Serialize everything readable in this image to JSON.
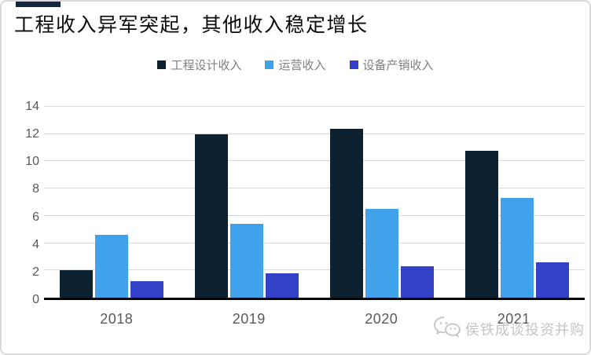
{
  "header": {
    "title": "工程收入异军突起，其他收入稳定增长"
  },
  "watermark": {
    "text": "侯铁成谈投资并购",
    "icon": "wechat-icon"
  },
  "colors": {
    "accent_bar": "#16263a",
    "axis_line": "#000000",
    "gridline": "#d9d9d9",
    "tick_label": "#595959",
    "legend_text": "#7f7f7f",
    "card_border": "#d9d9d9"
  },
  "chart_data": {
    "type": "bar",
    "title": "工程收入异军突起，其他收入稳定增长",
    "categories": [
      "2018",
      "2019",
      "2020",
      "2021"
    ],
    "series": [
      {
        "name": "工程设计收入",
        "color": "#0e2130",
        "values": [
          2.0,
          12.0,
          12.4,
          10.8
        ]
      },
      {
        "name": "运营收入",
        "color": "#41a2ec",
        "values": [
          4.6,
          5.4,
          6.5,
          7.3
        ]
      },
      {
        "name": "设备产销收入",
        "color": "#3341c9",
        "values": [
          1.2,
          1.8,
          2.3,
          2.6
        ]
      }
    ],
    "xlabel": "",
    "ylabel": "",
    "ylim": [
      0,
      14
    ],
    "ytick_step": 2,
    "grid": true,
    "legend_position": "top-center"
  }
}
